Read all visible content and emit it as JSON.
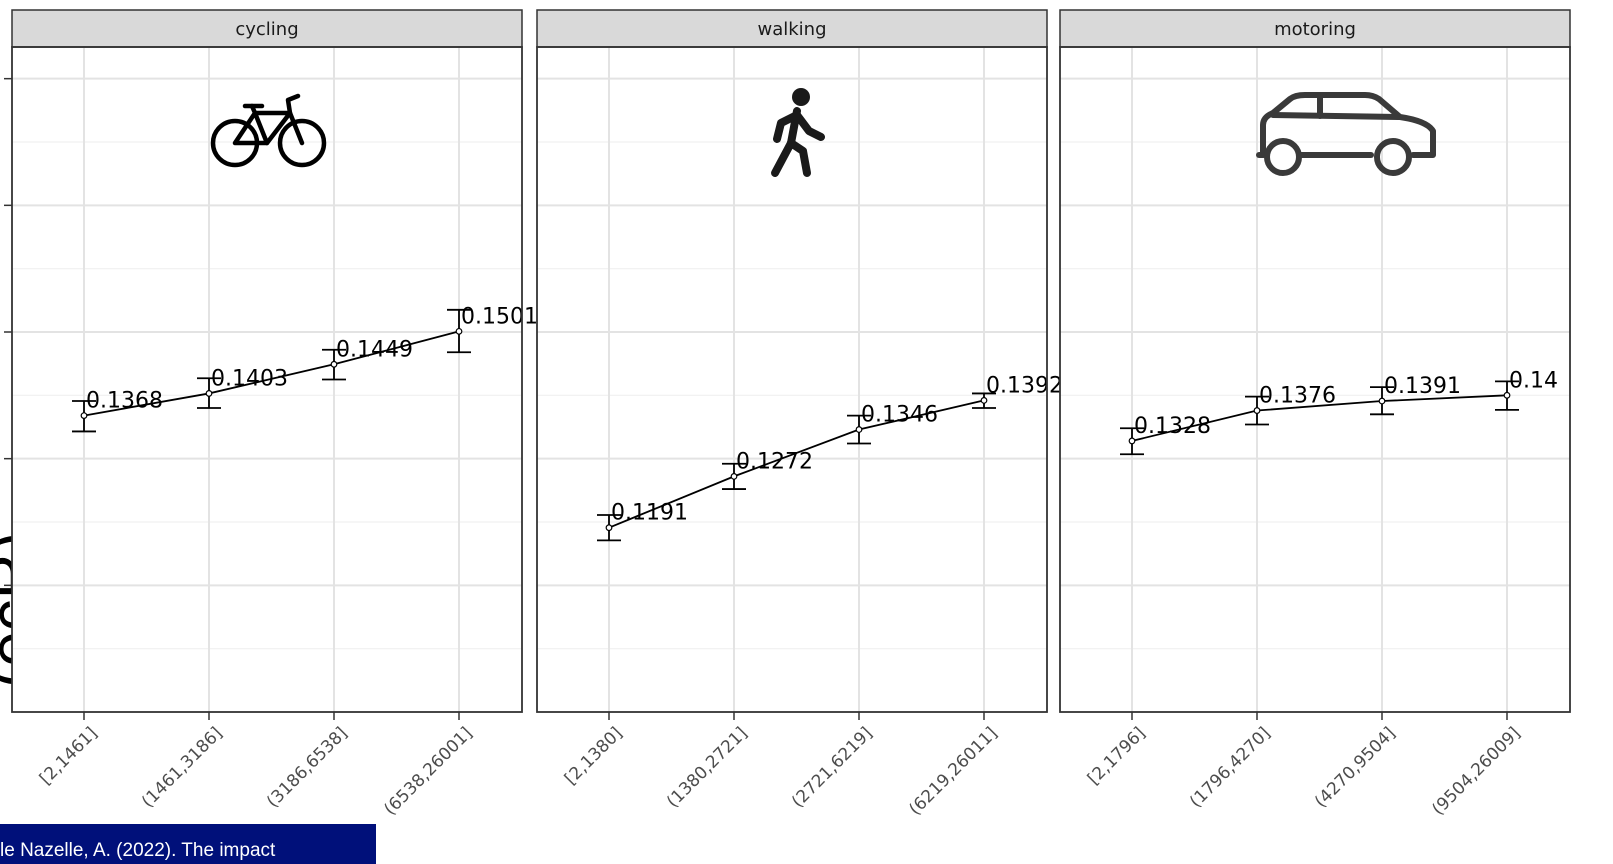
{
  "chart_data": {
    "type": "line",
    "grid": true,
    "error_bars": true,
    "ylim": [
      0.09,
      0.195
    ],
    "ylabel_fragment": "(ecR)",
    "panels": [
      {
        "title": "cycling",
        "icon": "bicycle-icon",
        "categories": [
          "[2,1461]",
          "(1461,3186]",
          "(3186,6538]",
          "(6538,26001]"
        ],
        "values": [
          0.1368,
          0.1403,
          0.1449,
          0.1501
        ],
        "lower": [
          0.1343,
          0.138,
          0.1425,
          0.1468
        ],
        "upper": [
          0.1391,
          0.1427,
          0.1472,
          0.1535
        ]
      },
      {
        "title": "walking",
        "icon": "walking-person-icon",
        "categories": [
          "[2,1380]",
          "(1380,2721]",
          "(2721,6219]",
          "(6219,26011]"
        ],
        "values": [
          0.1191,
          0.1272,
          0.1346,
          0.1392
        ],
        "lower": [
          0.1171,
          0.1252,
          0.1324,
          0.138
        ],
        "upper": [
          0.1211,
          0.1292,
          0.1368,
          0.1403
        ]
      },
      {
        "title": "motoring",
        "icon": "car-icon",
        "categories": [
          "[2,1796]",
          "(1796,4270]",
          "(4270,9504]",
          "(9504,26009]"
        ],
        "values": [
          0.1328,
          0.1376,
          0.1391,
          0.14
        ],
        "lower": [
          0.1307,
          0.1354,
          0.137,
          0.1377
        ],
        "upper": [
          0.1348,
          0.1398,
          0.1413,
          0.1422
        ]
      }
    ]
  },
  "citation": {
    "text": "le Nazelle, A. (2022). The impact"
  }
}
